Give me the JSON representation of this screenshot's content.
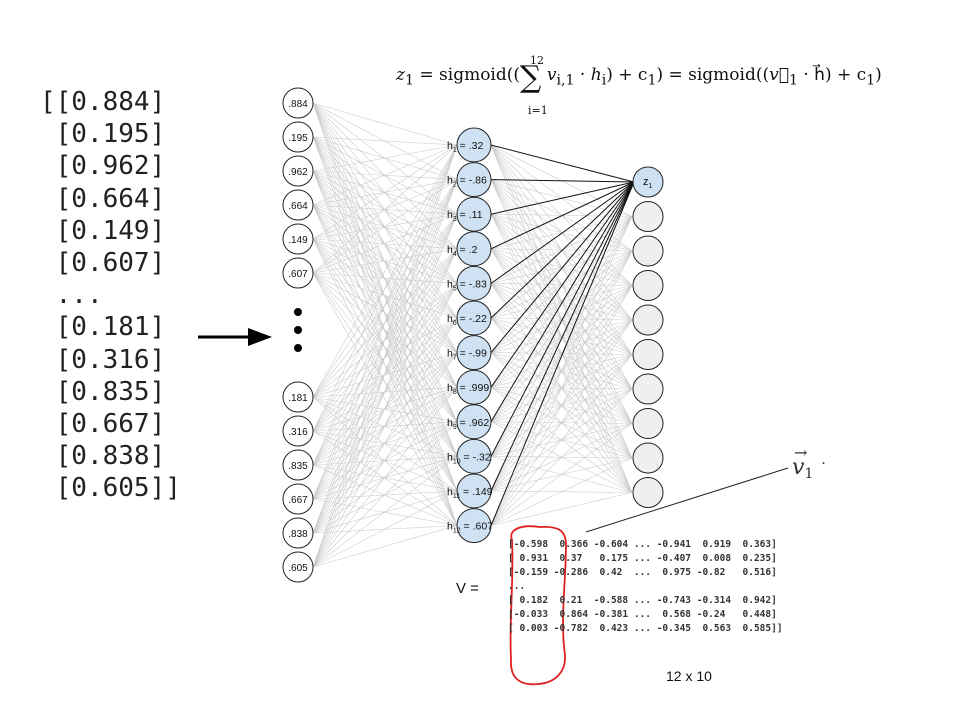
{
  "input_vector": [
    "[[0.884]",
    " [0.195]",
    " [0.962]",
    " [0.664]",
    " [0.149]",
    " [0.607]",
    " ...",
    " [0.181]",
    " [0.316]",
    " [0.835]",
    " [0.667]",
    " [0.838]",
    " [0.605]]"
  ],
  "input_nodes_top": [
    ".884",
    ".195",
    ".962",
    ".664",
    ".149",
    ".607"
  ],
  "input_nodes_bottom": [
    ".181",
    ".316",
    ".835",
    ".667",
    ".838",
    ".605"
  ],
  "hidden_nodes": [
    {
      "sub": "1",
      "val": " = .32"
    },
    {
      "sub": "2",
      "val": " = -.86"
    },
    {
      "sub": "3",
      "val": " = .11"
    },
    {
      "sub": "4",
      "val": " = .2"
    },
    {
      "sub": "5",
      "val": " = -.83"
    },
    {
      "sub": "6",
      "val": " = -.22"
    },
    {
      "sub": "7",
      "val": " = -.99"
    },
    {
      "sub": "8",
      "val": " = .999"
    },
    {
      "sub": "9",
      "val": " = .962"
    },
    {
      "sub": "10",
      "val": " = -.32"
    },
    {
      "sub": "11",
      "val": " = .149"
    },
    {
      "sub": "12",
      "val": " = .607"
    }
  ],
  "output_first": {
    "letter": "z",
    "sub": "1"
  },
  "output_count": 10,
  "formula": {
    "lhs": "z",
    "lhs_sub": "1",
    "eq1": " = sigmoid((",
    "sum": "∑",
    "sum_top": "12",
    "sum_bottom": "i=1",
    "term": " v",
    "term_sub": "i,1",
    "term_rest": " · h",
    "h_sub": "i",
    "mid": ") + c",
    "c_sub": "1",
    "eq2": ") = sigmoid((",
    "vec_expr": "v⃗",
    "vec_sub": "1",
    "dot_h": " · h⃗) + c",
    "c2_sub": "1",
    "end": ")"
  },
  "matrix_label": "V =",
  "matrix_lines": [
    "[-0.598  0.366 -0.604 ... -0.941  0.919  0.363]",
    "[ 0.931  0.37   0.175 ... -0.407  0.008  0.235]",
    "[-0.159 -0.286  0.42  ...  0.975 -0.82   0.516]",
    "...",
    "[ 0.182  0.21  -0.588 ... -0.743 -0.314  0.942]",
    "[-0.033  0.864 -0.381 ...  0.568 -0.24   0.448]",
    "[ 0.003 -0.782  0.423 ... -0.345  0.563  0.585]]"
  ],
  "matrix_dims": "12 x 10",
  "v1_label": {
    "letter": "v",
    "sub": "1",
    "trail": "·"
  },
  "colors": {
    "hidden_fill": "#cfe2f3",
    "output_fill": "#efefef",
    "input_fill": "#ffffff",
    "highlight": "#e02020",
    "faint_line": "#cccccc"
  }
}
